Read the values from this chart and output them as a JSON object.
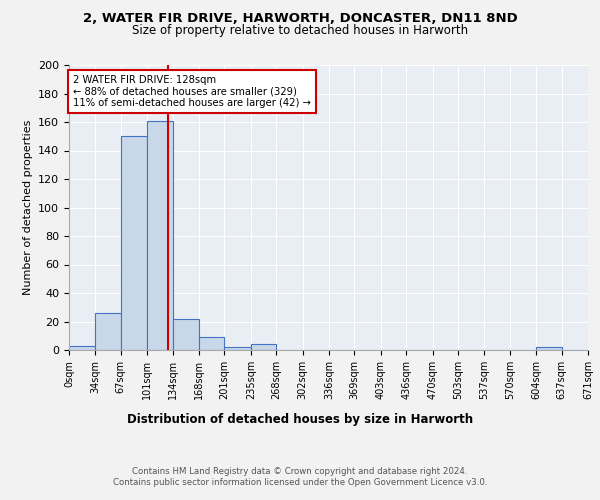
{
  "title_line1": "2, WATER FIR DRIVE, HARWORTH, DONCASTER, DN11 8ND",
  "title_line2": "Size of property relative to detached houses in Harworth",
  "xlabel": "Distribution of detached houses by size in Harworth",
  "ylabel": "Number of detached properties",
  "bin_edges": [
    0,
    34,
    67,
    101,
    134,
    168,
    201,
    235,
    268,
    302,
    336,
    369,
    403,
    436,
    470,
    503,
    537,
    570,
    604,
    637,
    671
  ],
  "bar_heights": [
    3,
    26,
    150,
    161,
    22,
    9,
    2,
    4,
    0,
    0,
    0,
    0,
    0,
    0,
    0,
    0,
    0,
    0,
    2,
    0
  ],
  "bar_color": "#c8d8e8",
  "bar_edge_color": "#4472c4",
  "property_value": 128,
  "vline_color": "#cc0000",
  "annotation_text": "2 WATER FIR DRIVE: 128sqm\n← 88% of detached houses are smaller (329)\n11% of semi-detached houses are larger (42) →",
  "annotation_box_color": "#ffffff",
  "annotation_box_edge_color": "#cc0000",
  "ylim": [
    0,
    200
  ],
  "yticks": [
    0,
    20,
    40,
    60,
    80,
    100,
    120,
    140,
    160,
    180,
    200
  ],
  "background_color": "#e8eef4",
  "grid_color": "#ffffff",
  "footer_text": "Contains HM Land Registry data © Crown copyright and database right 2024.\nContains public sector information licensed under the Open Government Licence v3.0.",
  "tick_labels": [
    "0sqm",
    "34sqm",
    "67sqm",
    "101sqm",
    "134sqm",
    "168sqm",
    "201sqm",
    "235sqm",
    "268sqm",
    "302sqm",
    "336sqm",
    "369sqm",
    "403sqm",
    "436sqm",
    "470sqm",
    "503sqm",
    "537sqm",
    "570sqm",
    "604sqm",
    "637sqm",
    "671sqm"
  ],
  "fig_bg_color": "#f2f2f2"
}
